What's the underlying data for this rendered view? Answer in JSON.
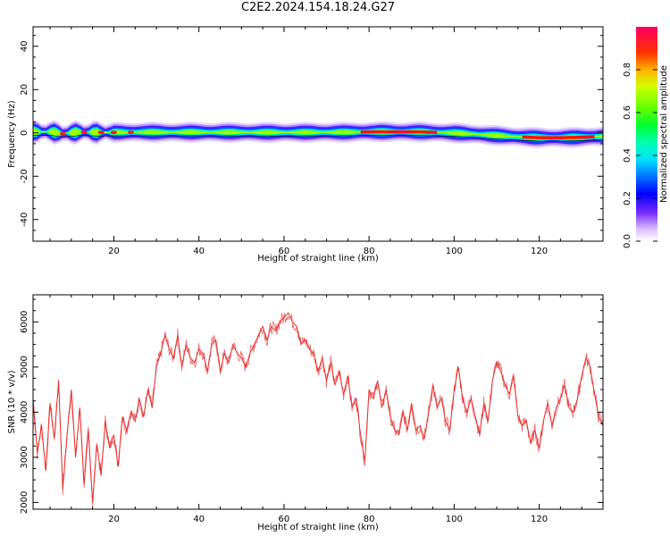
{
  "title": "C2E2.2024.154.18.24.G27",
  "chart_data": [
    {
      "type": "heatmap",
      "xlabel": "Height of straight line (km)",
      "ylabel": "Frequency (Hz)",
      "xlim": [
        1,
        135
      ],
      "ylim": [
        -50,
        49
      ],
      "xticks": [
        20,
        40,
        60,
        80,
        100,
        120
      ],
      "yticks": [
        40,
        20,
        0,
        -20,
        -40
      ],
      "colorbar": {
        "label": "Normalized spectral amplitude",
        "range": [
          0,
          1
        ],
        "ticks": [
          "0.0",
          "0.2",
          "0.4",
          "0.6",
          "0.8"
        ]
      },
      "band_center_hz": [
        [
          1,
          0.5
        ],
        [
          5,
          0.5
        ],
        [
          8,
          -0.3
        ],
        [
          12,
          0.4
        ],
        [
          16,
          0.2
        ],
        [
          25,
          0.3
        ],
        [
          40,
          0.3
        ],
        [
          60,
          0.2
        ],
        [
          75,
          0.3
        ],
        [
          80,
          0.5
        ],
        [
          90,
          0.5
        ],
        [
          95,
          0.3
        ],
        [
          100,
          0.0
        ],
        [
          105,
          -0.6
        ],
        [
          110,
          -1.2
        ],
        [
          115,
          -1.8
        ],
        [
          120,
          -2.2
        ],
        [
          125,
          -2.2
        ],
        [
          130,
          -2.0
        ],
        [
          135,
          -1.6
        ]
      ]
    },
    {
      "type": "line",
      "xlabel": "Height of straight line (km)",
      "ylabel": "SNR (10 * v/v)",
      "xlim": [
        1,
        135
      ],
      "ylim": [
        1850,
        6600
      ],
      "xticks": [
        20,
        40,
        60,
        80,
        100,
        120
      ],
      "yticks": [
        2000,
        3000,
        4000,
        5000,
        6000
      ],
      "series": [
        {
          "color": "#e83030",
          "x": [
            1,
            2,
            3,
            4,
            5,
            6,
            7,
            8,
            9,
            10,
            11,
            12,
            13,
            14,
            15,
            16,
            17,
            18,
            19,
            20,
            21,
            22,
            23,
            24,
            25,
            26,
            27,
            28,
            29,
            30,
            31,
            32,
            33,
            34,
            35,
            36,
            37,
            38,
            39,
            40,
            41,
            42,
            43,
            44,
            45,
            46,
            47,
            48,
            49,
            50,
            51,
            52,
            53,
            54,
            55,
            56,
            57,
            58,
            59,
            60,
            61,
            62,
            63,
            64,
            65,
            66,
            67,
            68,
            69,
            70,
            71,
            72,
            73,
            74,
            75,
            76,
            77,
            78,
            79,
            80,
            81,
            82,
            83,
            84,
            85,
            86,
            87,
            88,
            89,
            90,
            91,
            92,
            93,
            94,
            95,
            96,
            97,
            98,
            99,
            100,
            101,
            102,
            103,
            104,
            105,
            106,
            107,
            108,
            109,
            110,
            111,
            112,
            113,
            114,
            115,
            116,
            117,
            118,
            119,
            120,
            121,
            122,
            123,
            124,
            125,
            126,
            127,
            128,
            129,
            130,
            131,
            132,
            133,
            134,
            135
          ],
          "y": [
            4300,
            3100,
            3700,
            2700,
            4200,
            3400,
            4700,
            2300,
            3500,
            4500,
            3000,
            4100,
            2400,
            3600,
            2000,
            3300,
            2600,
            3800,
            3200,
            3500,
            2800,
            3900,
            3600,
            4000,
            3800,
            4300,
            3900,
            4500,
            4100,
            5000,
            5300,
            5700,
            5400,
            5200,
            5700,
            5000,
            5500,
            5200,
            5100,
            5400,
            5300,
            4900,
            5500,
            5600,
            4900,
            5300,
            5100,
            5500,
            5300,
            5200,
            5000,
            5300,
            5500,
            5700,
            5900,
            5600,
            5900,
            5800,
            6000,
            6100,
            6200,
            6000,
            5900,
            5500,
            5600,
            5400,
            5300,
            4900,
            5200,
            4700,
            5100,
            4600,
            4900,
            4400,
            4800,
            4100,
            4300,
            3500,
            2900,
            4500,
            4300,
            4700,
            4100,
            4500,
            3900,
            3600,
            3500,
            4000,
            3600,
            4200,
            3600,
            3700,
            3400,
            4000,
            4600,
            4100,
            4300,
            3800,
            3600,
            4500,
            5000,
            4300,
            4000,
            4300,
            3900,
            3500,
            4200,
            3800,
            4700,
            5100,
            4900,
            4600,
            4400,
            4800,
            3900,
            3700,
            3800,
            3300,
            3600,
            3200,
            3800,
            4200,
            3700,
            4100,
            4300,
            4600,
            4100,
            4000,
            4300,
            4800,
            5200,
            5000,
            4400,
            3900,
            3700
          ]
        }
      ]
    }
  ]
}
